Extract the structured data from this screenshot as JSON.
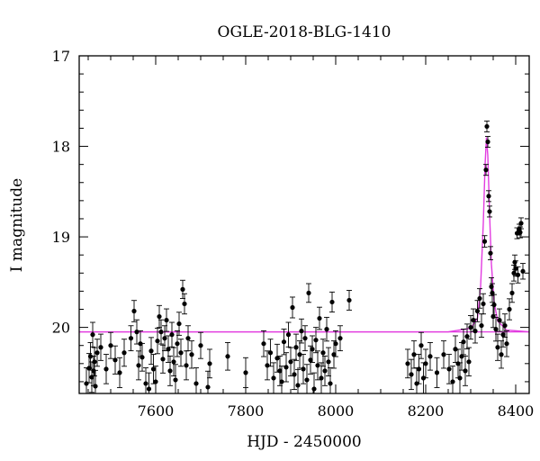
{
  "chart_data": {
    "type": "scatter",
    "title": "OGLE-2018-BLG-1410",
    "xlabel": "HJD - 2450000",
    "ylabel": "I magnitude",
    "xlim": [
      7430,
      8430
    ],
    "ylim": [
      20.73,
      17.0
    ],
    "y_inverted": true,
    "x_ticks": [
      "7600",
      "7800",
      "8000",
      "8200",
      "8400"
    ],
    "y_ticks": [
      "17",
      "18",
      "19",
      "20"
    ],
    "grid": false,
    "colors": {
      "points": "#000000",
      "model": "#e23ce0"
    },
    "baseline": 20.05,
    "model": {
      "x": [
        7430,
        8250,
        8300,
        8315,
        8322,
        8328,
        8332,
        8335,
        8338,
        8342,
        8346,
        8352,
        8360,
        8380,
        8430
      ],
      "y": [
        20.05,
        20.05,
        20.01,
        19.9,
        19.55,
        18.85,
        18.2,
        17.9,
        18.1,
        18.75,
        19.3,
        19.72,
        19.93,
        20.03,
        20.05
      ]
    },
    "series": [
      {
        "x": [
          7446,
          7452,
          7455,
          7458,
          7460,
          7462,
          7464,
          7466,
          7470,
          7478,
          7490,
          7500,
          7510,
          7520,
          7530,
          7545,
          7552,
          7558,
          7562,
          7566,
          7570,
          7578,
          7585,
          7590,
          7595,
          7600,
          7604,
          7608,
          7612,
          7616,
          7620,
          7624,
          7628,
          7632,
          7636,
          7640,
          7644,
          7648,
          7652,
          7656,
          7660,
          7664,
          7668,
          7672,
          7680,
          7690,
          7700,
          7716,
          7720,
          7760,
          7800,
          7840,
          7848,
          7855,
          7862,
          7870,
          7876,
          7880,
          7885,
          7890,
          7895,
          7900,
          7904,
          7908,
          7912,
          7916,
          7920,
          7924,
          7928,
          7932,
          7936,
          7940,
          7944,
          7948,
          7952,
          7956,
          7960,
          7964,
          7968,
          7972,
          7976,
          7980,
          7984,
          7988,
          7992,
          7996,
          8000,
          8010,
          8030,
          8160,
          8168,
          8174,
          8180,
          8185,
          8190,
          8195,
          8200,
          8210,
          8225,
          8240,
          8252,
          8260,
          8266,
          8272,
          8276,
          8280,
          8284,
          8288,
          8292,
          8296,
          8300,
          8306,
          8310,
          8315,
          8320,
          8324,
          8328,
          8331,
          8334,
          8336,
          8338,
          8340,
          8342,
          8344,
          8346,
          8348,
          8350,
          8352,
          8356,
          8360,
          8364,
          8368,
          8372,
          8376,
          8380,
          8386,
          8392,
          8396,
          8398,
          8400,
          8403,
          8405,
          8408,
          8410,
          8412,
          8416
        ],
        "y": [
          20.62,
          20.45,
          20.32,
          20.55,
          20.08,
          20.48,
          20.38,
          20.65,
          20.28,
          20.22,
          20.46,
          20.2,
          20.36,
          20.5,
          20.28,
          20.12,
          19.82,
          20.05,
          20.42,
          20.18,
          20.33,
          20.62,
          20.68,
          20.26,
          20.46,
          20.6,
          20.15,
          19.88,
          20.05,
          20.35,
          20.12,
          19.92,
          20.24,
          20.48,
          20.08,
          20.38,
          20.58,
          20.18,
          19.96,
          20.28,
          19.58,
          19.74,
          20.42,
          20.12,
          20.3,
          20.62,
          20.2,
          20.66,
          20.4,
          20.32,
          20.5,
          20.18,
          20.42,
          20.28,
          20.56,
          20.34,
          20.48,
          20.6,
          20.16,
          20.44,
          20.08,
          20.38,
          19.78,
          20.52,
          20.22,
          20.64,
          20.3,
          20.04,
          20.46,
          20.12,
          20.58,
          19.62,
          20.36,
          20.24,
          20.68,
          20.14,
          20.42,
          19.9,
          20.56,
          20.28,
          20.48,
          20.02,
          20.38,
          20.62,
          19.72,
          20.3,
          20.18,
          20.12,
          19.7,
          20.4,
          20.52,
          20.3,
          20.62,
          20.46,
          20.2,
          20.56,
          20.4,
          20.32,
          20.5,
          20.3,
          20.46,
          20.6,
          20.24,
          20.4,
          20.56,
          20.32,
          20.16,
          20.48,
          20.1,
          20.38,
          20.0,
          19.92,
          20.04,
          19.82,
          19.68,
          19.98,
          19.74,
          19.05,
          18.26,
          17.78,
          17.95,
          18.55,
          18.72,
          19.18,
          19.55,
          19.62,
          19.88,
          19.75,
          20.02,
          20.22,
          19.92,
          20.3,
          20.08,
          19.98,
          20.18,
          19.8,
          19.62,
          19.4,
          19.28,
          19.35,
          18.96,
          19.42,
          18.92,
          18.95,
          18.85,
          19.38
        ]
      }
    ]
  }
}
